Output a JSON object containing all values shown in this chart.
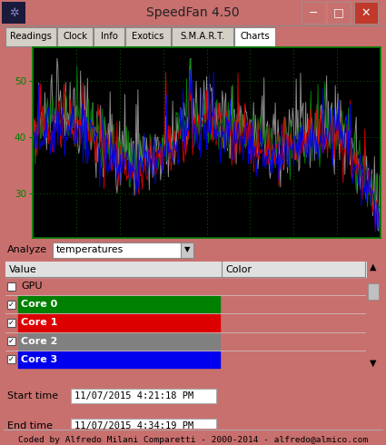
{
  "title": "SpeedFan 4.50",
  "title_bar_color": "#c8706e",
  "window_bg": "#d4d0c8",
  "chart_bg": "#000000",
  "chart_border_color": "#008000",
  "grid_dot_color": "#006400",
  "tab_labels": [
    "Readings",
    "Clock",
    "Info",
    "Exotics",
    "S.M.A.R.T.",
    "Charts"
  ],
  "active_tab": "Charts",
  "analyze_label": "Analyze",
  "analyze_value": "temperatures",
  "table_headers": [
    "Value",
    "Color"
  ],
  "table_rows": [
    {
      "label": "GPU",
      "checked": false,
      "color": null
    },
    {
      "label": "Core 0",
      "checked": true,
      "color": "#008000"
    },
    {
      "label": "Core 1",
      "checked": true,
      "color": "#dd0000"
    },
    {
      "label": "Core 2",
      "checked": true,
      "color": "#808080"
    },
    {
      "label": "Core 3",
      "checked": true,
      "color": "#0000ee"
    }
  ],
  "start_time": "11/07/2015 4:21:18 PM",
  "end_time": "11/07/2015 4:34:19 PM",
  "footer": "Coded by Alfredo Milani Comparetti - 2000-2014 - alfredo@almico.com",
  "yticks": [
    30,
    40,
    50
  ],
  "ymin": 22,
  "ymax": 56,
  "line_colors": [
    "#008000",
    "#dd0000",
    "#909090",
    "#0000ee"
  ],
  "num_points": 400
}
